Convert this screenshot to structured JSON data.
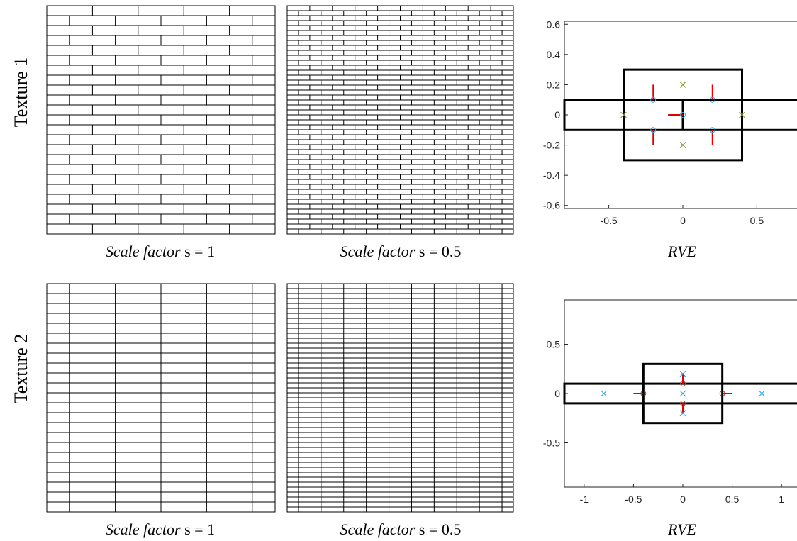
{
  "row_labels": [
    "Texture 1",
    "Texture 2"
  ],
  "caption_prefix": "Scale factor",
  "captions": {
    "s1": "s = 1",
    "s05": "s = 0.5",
    "rve": "RVE"
  },
  "colors": {
    "line": "#000000",
    "arrow": "#e00000",
    "circle": "#33a7e8",
    "cross_texture1": "#8a9a2a",
    "cross_texture2": "#33a7e8",
    "circle_texture2": "#c0392b"
  },
  "textures": [
    {
      "name": "Texture 1",
      "pattern": "running bond",
      "s1": {
        "courses": 23,
        "bricks_per_course": 5
      },
      "s05": {
        "courses": 46,
        "bricks_per_course": 10
      },
      "rve": {
        "xlim": [
          -0.8,
          0.8
        ],
        "ylim": [
          -0.62,
          0.62
        ],
        "xticks": [
          "-0.5",
          "0",
          "0.5"
        ],
        "xtick_values": [
          -0.5,
          0,
          0.5
        ],
        "yticks": [
          "0.6",
          "0.4",
          "0.2",
          "0",
          "-0.2",
          "-0.4",
          "-0.6"
        ],
        "ytick_values": [
          0.6,
          0.4,
          0.2,
          0,
          -0.2,
          -0.4,
          -0.6
        ],
        "rects": [
          {
            "x0": -0.4,
            "x1": 0.4,
            "y0": -0.3,
            "y1": 0.3
          },
          {
            "x0": -0.8,
            "x1": 0.8,
            "y0": -0.1,
            "y1": 0.1
          }
        ],
        "segments": [
          {
            "x0": 0,
            "y0": -0.1,
            "x1": 0,
            "y1": 0.1
          }
        ],
        "circles": [
          {
            "x": -0.2,
            "y": 0.1
          },
          {
            "x": 0.2,
            "y": 0.1
          },
          {
            "x": -0.2,
            "y": -0.1
          },
          {
            "x": 0.2,
            "y": -0.1
          },
          {
            "x": 0,
            "y": 0
          }
        ],
        "crosses": [
          {
            "x": 0,
            "y": 0.2
          },
          {
            "x": 0,
            "y": -0.2
          },
          {
            "x": -0.4,
            "y": 0
          },
          {
            "x": 0.4,
            "y": 0
          }
        ],
        "arrows": [
          {
            "x": -0.2,
            "y": 0.1,
            "dx": 0,
            "dy": 0.1
          },
          {
            "x": 0.2,
            "y": 0.1,
            "dx": 0,
            "dy": 0.1
          },
          {
            "x": -0.2,
            "y": -0.1,
            "dx": 0,
            "dy": -0.1
          },
          {
            "x": 0.2,
            "y": -0.1,
            "dx": 0,
            "dy": -0.1
          },
          {
            "x": 0,
            "y": 0,
            "dx": -0.1,
            "dy": 0
          }
        ]
      }
    },
    {
      "name": "Texture 2",
      "pattern": "stacked columns",
      "s1": {
        "courses": 23,
        "columns": 5
      },
      "s05": {
        "courses": 46,
        "columns": 10
      },
      "rve": {
        "xlim": [
          -1.2,
          1.2
        ],
        "ylim": [
          -0.95,
          0.95
        ],
        "xticks": [
          "-1",
          "-0.5",
          "0",
          "0.5",
          "1"
        ],
        "xtick_values": [
          -1,
          -0.5,
          0,
          0.5,
          1
        ],
        "yticks": [
          "0.5",
          "0",
          "-0.5"
        ],
        "ytick_values": [
          0.5,
          0,
          -0.5
        ],
        "rects": [
          {
            "x0": -0.4,
            "x1": 0.4,
            "y0": -0.3,
            "y1": 0.3
          },
          {
            "x0": -1.2,
            "x1": 1.2,
            "y0": -0.1,
            "y1": 0.1
          }
        ],
        "segments": [],
        "circles": [
          {
            "x": -0.4,
            "y": 0
          },
          {
            "x": 0.4,
            "y": 0
          },
          {
            "x": 0,
            "y": 0.1
          },
          {
            "x": 0,
            "y": -0.1
          }
        ],
        "crosses": [
          {
            "x": -0.8,
            "y": 0
          },
          {
            "x": 0.8,
            "y": 0
          },
          {
            "x": 0,
            "y": 0
          },
          {
            "x": 0,
            "y": 0.2
          },
          {
            "x": 0,
            "y": -0.2
          }
        ],
        "arrows": [
          {
            "x": -0.4,
            "y": 0,
            "dx": -0.1,
            "dy": 0
          },
          {
            "x": 0.4,
            "y": 0,
            "dx": 0.1,
            "dy": 0
          },
          {
            "x": 0,
            "y": 0.1,
            "dx": 0,
            "dy": 0.1
          },
          {
            "x": 0,
            "y": -0.1,
            "dx": 0,
            "dy": -0.1
          }
        ]
      }
    }
  ]
}
